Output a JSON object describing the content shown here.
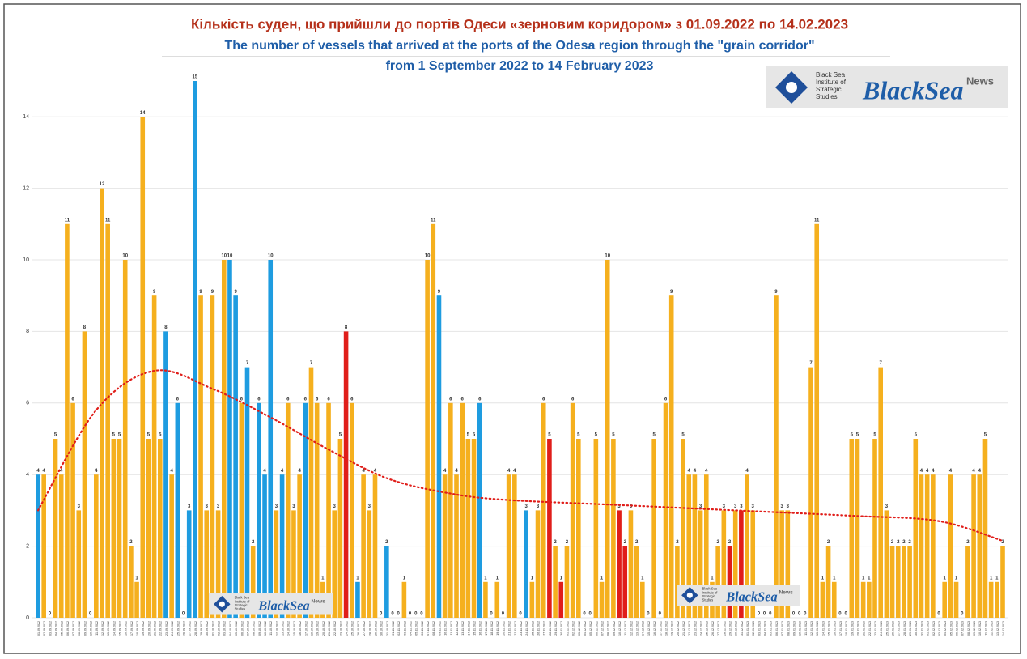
{
  "chart_data": {
    "type": "bar",
    "title": "Кількість суден, що прийшли до  портів Одеси «зерновим коридором» з 01.09.2022 по 14.02.2023",
    "subtitle": [
      "The number of vessels that arrived at the ports of the Odesa region through the \"grain corridor\"",
      "from 1 September 2022 to 14 February 2023"
    ],
    "logo": {
      "institute": [
        "Black Sea",
        "Institute of",
        "Strategic",
        "Studies"
      ],
      "brand": "BlackSea",
      "brand_sub": "News"
    },
    "categories": [
      "01.09.2022",
      "02.09.2022",
      "03.09.2022",
      "04.09.2022",
      "05.09.2022",
      "06.09.2022",
      "07.09.2022",
      "08.09.2022",
      "09.09.2022",
      "10.09.2022",
      "11.09.2022",
      "12.09.2022",
      "13.09.2022",
      "14.09.2022",
      "15.09.2022",
      "16.09.2022",
      "17.09.2022",
      "18.09.2022",
      "19.09.2022",
      "20.09.2022",
      "21.09.2022",
      "22.09.2022",
      "23.09.2022",
      "24.09.2022",
      "25.09.2022",
      "26.09.2022",
      "27.09.2022",
      "28.09.2022",
      "29.09.2022",
      "30.09.2022",
      "01.10.2022",
      "02.10.2022",
      "03.10.2022",
      "04.10.2022",
      "05.10.2022",
      "06.10.2022",
      "07.10.2022",
      "08.10.2022",
      "09.10.2022",
      "10.10.2022",
      "11.10.2022",
      "12.10.2022",
      "13.10.2022",
      "14.10.2022",
      "15.10.2022",
      "16.10.2022",
      "17.10.2022",
      "18.10.2022",
      "19.10.2022",
      "20.10.2022",
      "21.10.2022",
      "22.10.2022",
      "23.10.2022",
      "24.10.2022",
      "25.10.2022",
      "26.10.2022",
      "27.10.2022",
      "28.10.2022",
      "29.10.2022",
      "30.10.2022",
      "31.10.2022",
      "01.11.2022",
      "02.11.2022",
      "03.11.2022",
      "04.11.2022",
      "05.11.2022",
      "06.11.2022",
      "07.11.2022",
      "08.11.2022",
      "09.11.2022",
      "10.11.2022",
      "11.11.2022",
      "12.11.2022",
      "13.11.2022",
      "14.11.2022",
      "15.11.2022",
      "16.11.2022",
      "17.11.2022",
      "18.11.2022",
      "19.11.2022",
      "20.11.2022",
      "21.11.2022",
      "22.11.2022",
      "23.11.2022",
      "24.11.2022",
      "25.11.2022",
      "26.11.2022",
      "27.11.2022",
      "28.11.2022",
      "29.11.2022",
      "30.11.2022",
      "01.12.2022",
      "02.12.2022",
      "03.12.2022",
      "04.12.2022",
      "05.12.2022",
      "06.12.2022",
      "07.12.2022",
      "08.12.2022",
      "09.12.2022",
      "10.12.2022",
      "11.12.2022",
      "12.12.2022",
      "13.12.2022",
      "14.12.2022",
      "15.12.2022",
      "16.12.2022",
      "17.12.2022",
      "18.12.2022",
      "19.12.2022",
      "20.12.2022",
      "21.12.2022",
      "22.12.2022",
      "23.12.2022",
      "24.12.2022",
      "25.12.2022",
      "26.12.2022",
      "27.12.2022",
      "28.12.2022",
      "29.12.2022",
      "30.12.2022",
      "31.12.2022",
      "01.01.2023",
      "02.01.2023",
      "03.01.2023",
      "04.01.2023",
      "05.01.2023",
      "06.01.2023",
      "07.01.2023",
      "08.01.2023",
      "09.01.2023",
      "10.01.2023",
      "11.01.2023",
      "12.01.2023",
      "13.01.2023",
      "14.01.2023",
      "15.01.2023",
      "16.01.2023",
      "17.01.2023",
      "18.01.2023",
      "19.01.2023",
      "20.01.2023",
      "21.01.2023",
      "22.01.2023",
      "23.01.2023",
      "24.01.2023",
      "25.01.2023",
      "26.01.2023",
      "27.01.2023",
      "28.01.2023",
      "29.01.2023",
      "30.01.2023",
      "31.01.2023",
      "01.02.2023",
      "02.02.2023",
      "03.02.2023",
      "04.02.2023",
      "05.02.2023",
      "06.02.2023",
      "07.02.2023",
      "08.02.2023",
      "09.02.2023",
      "10.02.2023",
      "11.02.2023",
      "12.02.2023",
      "13.02.2023",
      "14.02.2023"
    ],
    "values": [
      4,
      4,
      0,
      5,
      4,
      11,
      6,
      3,
      8,
      0,
      4,
      12,
      11,
      5,
      5,
      10,
      2,
      1,
      14,
      5,
      9,
      5,
      8,
      4,
      6,
      0,
      3,
      15,
      9,
      3,
      9,
      3,
      10,
      10,
      9,
      6,
      7,
      2,
      6,
      4,
      10,
      3,
      4,
      6,
      3,
      4,
      6,
      7,
      6,
      1,
      6,
      3,
      5,
      8,
      6,
      1,
      4,
      3,
      4,
      0,
      2,
      0,
      0,
      1,
      0,
      0,
      0,
      10,
      11,
      9,
      4,
      6,
      4,
      6,
      5,
      5,
      6,
      1,
      0,
      1,
      0,
      4,
      4,
      0,
      3,
      1,
      3,
      6,
      5,
      2,
      1,
      2,
      6,
      5,
      0,
      0,
      5,
      1,
      10,
      5,
      3,
      2,
      3,
      2,
      1,
      0,
      5,
      0,
      6,
      9,
      2,
      5,
      4,
      4,
      3,
      4,
      1,
      2,
      3,
      2,
      3,
      3,
      4,
      3,
      0,
      0,
      0,
      9,
      3,
      3,
      0,
      0,
      0,
      7,
      11,
      1,
      2,
      1,
      0,
      0,
      5,
      5,
      1,
      1,
      5,
      7,
      3,
      2,
      2,
      2,
      2,
      5,
      4,
      4,
      4,
      0,
      1,
      4,
      1,
      0,
      2,
      4,
      4,
      5,
      1,
      1,
      2
    ],
    "palette": {
      "orange": "#f5b01e",
      "blue": "#1e9ce0",
      "red": "#e01e1a"
    },
    "blue_bars": [
      0,
      22,
      24,
      26,
      27,
      33,
      34,
      36,
      38,
      39,
      40,
      42,
      46,
      55,
      60,
      69,
      76,
      78,
      84
    ],
    "red_bars": [
      53,
      88,
      90,
      100,
      101,
      119,
      121
    ],
    "trend": {
      "color": "#e01e1a",
      "x": [
        0,
        10,
        20,
        30,
        40,
        50,
        60,
        70,
        80,
        100,
        120,
        140,
        155,
        166
      ],
      "values": [
        3,
        5.8,
        6.9,
        6.4,
        5.6,
        4.7,
        3.9,
        3.5,
        3.3,
        3.15,
        3,
        2.85,
        2.7,
        2.15
      ]
    },
    "ylim": [
      0,
      15
    ],
    "yticks": [
      0,
      2,
      4,
      6,
      8,
      10,
      12,
      14
    ],
    "grid": true
  }
}
